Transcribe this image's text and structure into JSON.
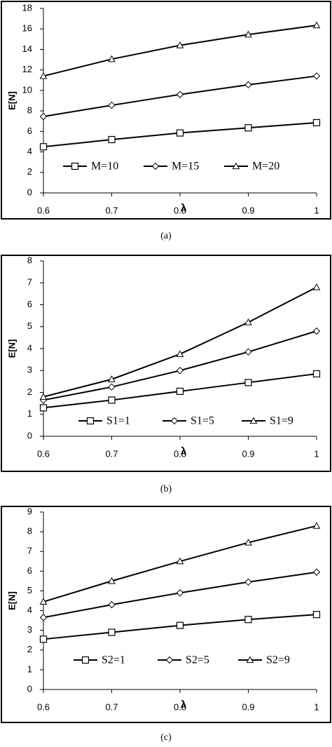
{
  "chart_data": [
    {
      "type": "line",
      "caption": "(a)",
      "xlabel": "λ",
      "ylabel": "E[N]",
      "x": [
        0.6,
        0.7,
        0.8,
        0.9,
        1
      ],
      "xlim": [
        0.6,
        1
      ],
      "xticks": [
        0.6,
        0.7,
        0.8,
        0.9,
        1
      ],
      "ylim": [
        0,
        18
      ],
      "yticks": [
        0,
        2,
        4,
        6,
        8,
        10,
        12,
        14,
        16,
        18
      ],
      "legend": "lower center",
      "series": [
        {
          "name": "M=10",
          "color": "#000000",
          "marker": "square",
          "values": [
            4.5,
            5.2,
            5.85,
            6.35,
            6.85
          ]
        },
        {
          "name": "M=15",
          "color": "#000000",
          "marker": "diamond",
          "values": [
            7.45,
            8.55,
            9.6,
            10.55,
            11.4
          ]
        },
        {
          "name": "M=20",
          "color": "#000000",
          "marker": "triangle",
          "values": [
            11.4,
            13.05,
            14.4,
            15.45,
            16.35
          ]
        }
      ]
    },
    {
      "type": "line",
      "caption": "(b)",
      "xlabel": "λ",
      "ylabel": "E[N]",
      "x": [
        0.6,
        0.7,
        0.8,
        0.9,
        1
      ],
      "xlim": [
        0.6,
        1
      ],
      "xticks": [
        0.6,
        0.7,
        0.8,
        0.9,
        1
      ],
      "ylim": [
        0,
        8
      ],
      "yticks": [
        0,
        1,
        2,
        3,
        4,
        5,
        6,
        7,
        8
      ],
      "legend": "lower center",
      "series": [
        {
          "name": "S1=1",
          "color": "#000000",
          "marker": "square",
          "values": [
            1.3,
            1.65,
            2.05,
            2.45,
            2.85
          ]
        },
        {
          "name": "S1=5",
          "color": "#000000",
          "marker": "diamond",
          "values": [
            1.65,
            2.25,
            3.0,
            3.85,
            4.8
          ]
        },
        {
          "name": "S1=9",
          "color": "#000000",
          "marker": "triangle",
          "values": [
            1.8,
            2.6,
            3.75,
            5.2,
            6.8
          ]
        }
      ]
    },
    {
      "type": "line",
      "caption": "(c)",
      "xlabel": "λ",
      "ylabel": "E[N]",
      "x": [
        0.6,
        0.7,
        0.8,
        0.9,
        1
      ],
      "xlim": [
        0.6,
        1
      ],
      "xticks": [
        0.6,
        0.7,
        0.8,
        0.9,
        1
      ],
      "ylim": [
        0,
        9
      ],
      "yticks": [
        0,
        1,
        2,
        3,
        4,
        5,
        6,
        7,
        8,
        9
      ],
      "legend": "lower center",
      "series": [
        {
          "name": "S2=1",
          "color": "#000000",
          "marker": "square",
          "values": [
            2.55,
            2.9,
            3.25,
            3.55,
            3.8
          ]
        },
        {
          "name": "S2=5",
          "color": "#000000",
          "marker": "diamond",
          "values": [
            3.65,
            4.3,
            4.9,
            5.45,
            5.95
          ]
        },
        {
          "name": "S2=9",
          "color": "#000000",
          "marker": "triangle",
          "values": [
            4.45,
            5.5,
            6.5,
            7.45,
            8.3
          ]
        }
      ]
    }
  ]
}
